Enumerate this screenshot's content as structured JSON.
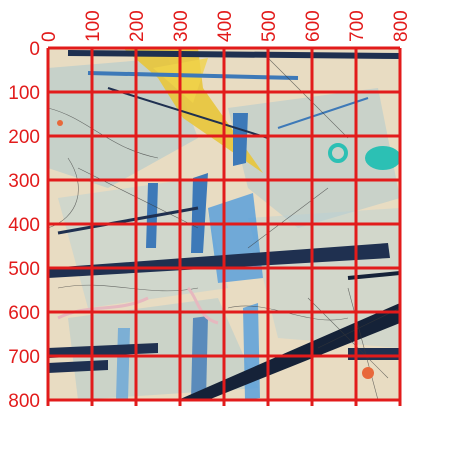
{
  "image": {
    "subject": "abstract-painting-with-grid-overlay",
    "colors": {
      "background": "#e8dcc2",
      "paper": "#efe6cf",
      "pale_blue": "#a9c8d0",
      "sky_blue": "#5aa0da",
      "mid_blue": "#3d79b8",
      "navy": "#1f3050",
      "dark_navy": "#152238",
      "yellow": "#e8c53a",
      "teal": "#2cc0b4",
      "orange": "#e8683a",
      "pink": "#e6b8bf",
      "ink": "#3a3a3a",
      "grid_red": "#e21b1b"
    }
  },
  "grid": {
    "x_ticks": [
      "0",
      "100",
      "200",
      "300",
      "400",
      "500",
      "600",
      "700",
      "800"
    ],
    "y_ticks": [
      "0",
      "100",
      "200",
      "300",
      "400",
      "500",
      "600",
      "700",
      "800"
    ]
  }
}
